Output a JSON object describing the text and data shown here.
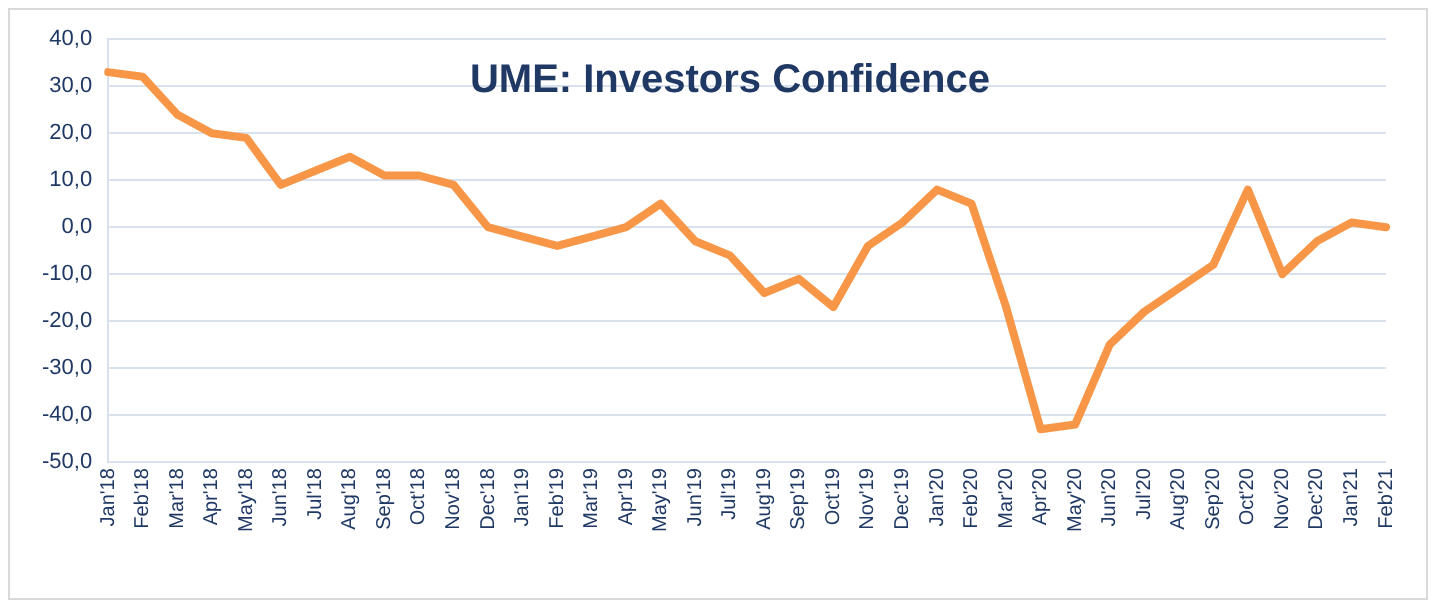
{
  "chart_data": {
    "type": "line",
    "title": "UME: Investors Confidence",
    "categories": [
      "Jan'18",
      "Feb'18",
      "Mar'18",
      "Apr'18",
      "May'18",
      "Jun'18",
      "Jul'18",
      "Aug'18",
      "Sep'18",
      "Oct'18",
      "Nov'18",
      "Dec'18",
      "Jan'19",
      "Feb'19",
      "Mar'19",
      "Apr'19",
      "May'19",
      "Jun'19",
      "Jul'19",
      "Aug'19",
      "Sep'19",
      "Oct'19",
      "Nov'19",
      "Dec'19",
      "Jan'20",
      "Feb'20",
      "Mar'20",
      "Apr'20",
      "May'20",
      "Jun'20",
      "Jul'20",
      "Aug'20",
      "Sep'20",
      "Oct'20",
      "Nov'20",
      "Dec'20",
      "Jan'21",
      "Feb'21"
    ],
    "series": [
      {
        "color": "#f79646",
        "values": [
          33,
          32,
          24,
          20,
          19,
          9,
          12,
          15,
          11,
          11,
          9,
          0,
          -2,
          -4,
          -2,
          0,
          5,
          -3,
          -6,
          -14,
          -11,
          -17,
          -4,
          1,
          8,
          5,
          -17,
          -43,
          -42,
          -25,
          -18,
          -13,
          -8,
          8,
          -10,
          -3,
          1,
          0
        ]
      }
    ],
    "ylim": [
      -50,
      40
    ],
    "yticks": [
      {
        "value": -50,
        "label": "-50,0"
      },
      {
        "value": -40,
        "label": "-40,0"
      },
      {
        "value": -30,
        "label": "-30,0"
      },
      {
        "value": -20,
        "label": "-20,0"
      },
      {
        "value": -10,
        "label": "-10,0"
      },
      {
        "value": 0,
        "label": "0,0"
      },
      {
        "value": 10,
        "label": "10,0"
      },
      {
        "value": 20,
        "label": "20,0"
      },
      {
        "value": 30,
        "label": "30,0"
      },
      {
        "value": 40,
        "label": "40,0"
      }
    ],
    "grid": "y",
    "legend": false,
    "marker": "none",
    "line_style": "solid"
  }
}
